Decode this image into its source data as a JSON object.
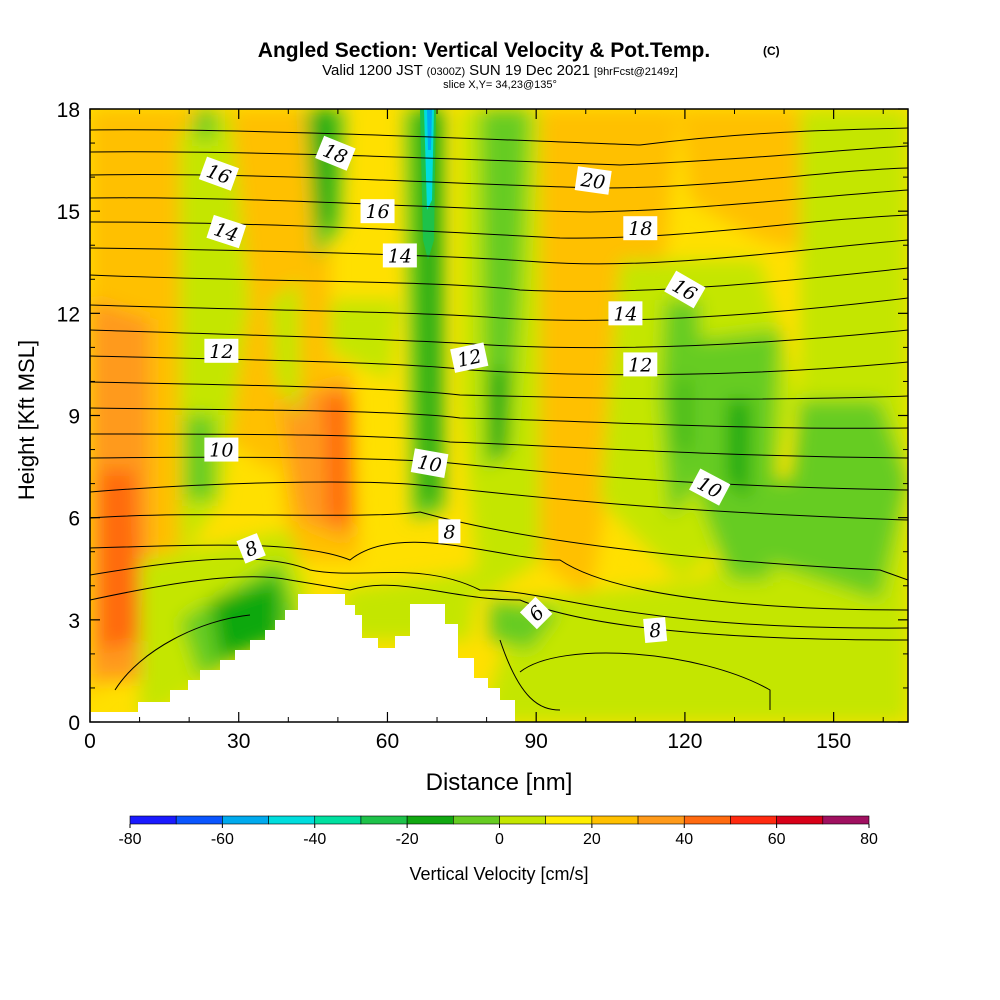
{
  "header": {
    "title_main": "Angled Section: Vertical Velocity & Pot.Temp.",
    "title_unit": "(C)",
    "valid_prefix": "Valid 1200 JST",
    "valid_zulu": "(0300Z)",
    "valid_date": "SUN 19 Dec 2021",
    "valid_fcst": "[9hrFcst@2149z]",
    "slice": "slice X,Y= 34,23@135°"
  },
  "chart_data": {
    "type": "heatmap",
    "xlabel": "Distance [nm]",
    "ylabel": "Height [Kft MSL]",
    "xlim": [
      0,
      165
    ],
    "ylim": [
      0,
      18
    ],
    "x_ticks": [
      "0",
      "30",
      "60",
      "90",
      "120",
      "150"
    ],
    "y_ticks": [
      "0",
      "3",
      "6",
      "9",
      "12",
      "15",
      "18"
    ],
    "x_tick_values": [
      0,
      30,
      60,
      90,
      120,
      150
    ],
    "y_tick_values": [
      0,
      3,
      6,
      9,
      12,
      15,
      18
    ],
    "colorbar": {
      "label": "Vertical Velocity [cm/s]",
      "tick_labels": [
        "-80",
        "-60",
        "-40",
        "-20",
        "0",
        "20",
        "40",
        "60",
        "80"
      ],
      "tick_values": [
        -80,
        -60,
        -40,
        -20,
        0,
        20,
        40,
        60,
        80
      ],
      "bins": [
        -80,
        -70,
        -60,
        -50,
        -40,
        -30,
        -20,
        -10,
        0,
        10,
        20,
        30,
        40,
        50,
        60,
        70,
        80
      ],
      "colors": [
        "#1a1aff",
        "#0a55ff",
        "#00aaee",
        "#00dddd",
        "#00e0a0",
        "#1ec24a",
        "#11a811",
        "#66cc22",
        "#c4e600",
        "#ffee00",
        "#ffc000",
        "#ff9a1a",
        "#ff6a10",
        "#ff2a10",
        "#d80018",
        "#a01060"
      ]
    },
    "contour_labels": [
      {
        "text": "16",
        "x": 26,
        "y": 16.1,
        "rot": 20
      },
      {
        "text": "14",
        "x": 27.5,
        "y": 14.4,
        "rot": 18
      },
      {
        "text": "12",
        "x": 26.5,
        "y": 10.9,
        "rot": 0
      },
      {
        "text": "10",
        "x": 26.5,
        "y": 8.0,
        "rot": 0
      },
      {
        "text": "8",
        "x": 32.5,
        "y": 5.1,
        "rot": -22
      },
      {
        "text": "18",
        "x": 49.5,
        "y": 16.7,
        "rot": 22
      },
      {
        "text": "16",
        "x": 58,
        "y": 15.0,
        "rot": 0
      },
      {
        "text": "14",
        "x": 62.5,
        "y": 13.7,
        "rot": 0
      },
      {
        "text": "12",
        "x": 76.5,
        "y": 10.7,
        "rot": -12
      },
      {
        "text": "10",
        "x": 68.5,
        "y": 7.6,
        "rot": 10
      },
      {
        "text": "8",
        "x": 72.5,
        "y": 5.6,
        "rot": 0
      },
      {
        "text": "6",
        "x": 90,
        "y": 3.2,
        "rot": -45
      },
      {
        "text": "20",
        "x": 101.5,
        "y": 15.9,
        "rot": 8
      },
      {
        "text": "18",
        "x": 111,
        "y": 14.5,
        "rot": 0
      },
      {
        "text": "16",
        "x": 120,
        "y": 12.7,
        "rot": 30
      },
      {
        "text": "14",
        "x": 108,
        "y": 12.0,
        "rot": 0
      },
      {
        "text": "12",
        "x": 111,
        "y": 10.5,
        "rot": 0
      },
      {
        "text": "10",
        "x": 125,
        "y": 6.9,
        "rot": 28
      },
      {
        "text": "8",
        "x": 114,
        "y": 2.7,
        "rot": -5
      }
    ]
  }
}
